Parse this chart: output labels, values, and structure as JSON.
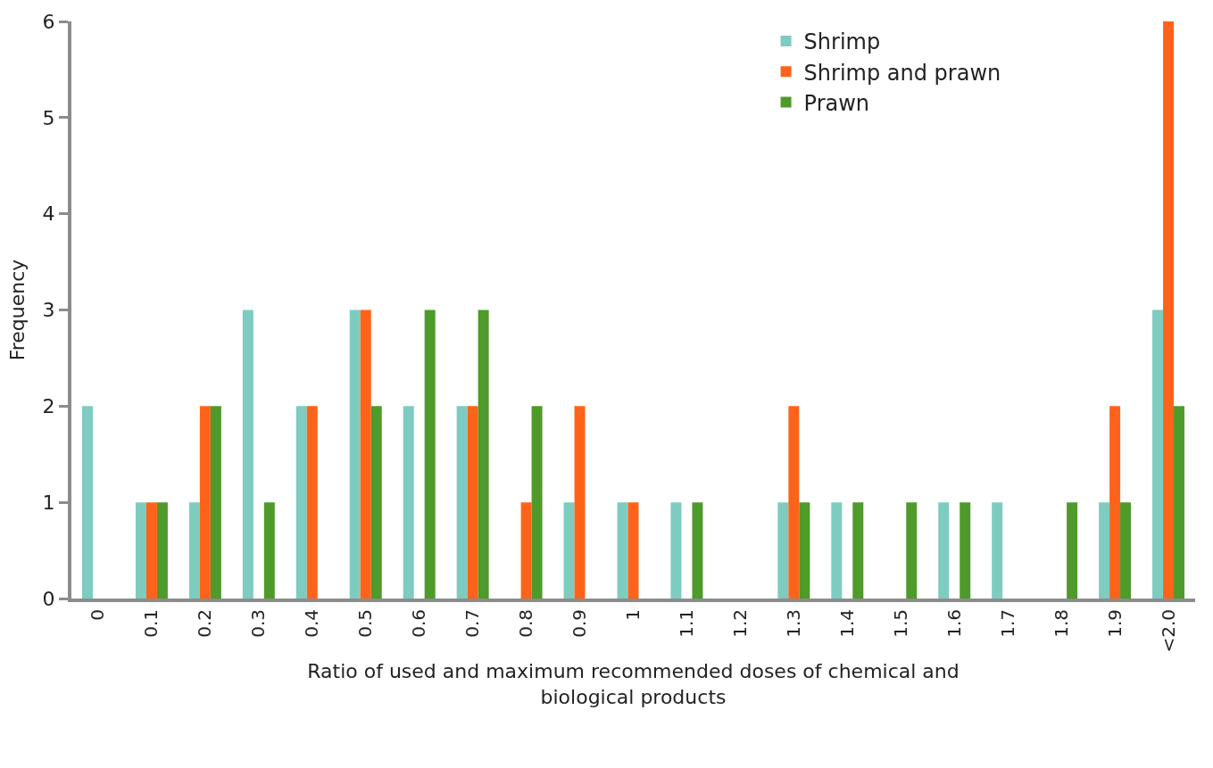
{
  "chart_data": {
    "type": "bar",
    "categories": [
      "0",
      "0.1",
      "0.2",
      "0.3",
      "0.4",
      "0.5",
      "0.6",
      "0.7",
      "0.8",
      "0.9",
      "1",
      "1.1",
      "1.2",
      "1.3",
      "1.4",
      "1.5",
      "1.6",
      "1.7",
      "1.8",
      "1.9",
      "<2.0"
    ],
    "series": [
      {
        "name": "Shrimp",
        "color": "#7ecbc0",
        "values": [
          2,
          1,
          1,
          3,
          2,
          3,
          2,
          2,
          0,
          1,
          1,
          1,
          0,
          1,
          1,
          0,
          1,
          1,
          0,
          1,
          3
        ]
      },
      {
        "name": "Shrimp and prawn",
        "color": "#ff6319",
        "values": [
          0,
          1,
          2,
          0,
          2,
          3,
          0,
          2,
          1,
          2,
          1,
          0,
          0,
          2,
          0,
          0,
          0,
          0,
          0,
          2,
          6
        ]
      },
      {
        "name": "Prawn",
        "color": "#4e9a2a",
        "values": [
          0,
          1,
          2,
          1,
          0,
          2,
          3,
          3,
          2,
          0,
          0,
          1,
          0,
          1,
          1,
          1,
          1,
          0,
          1,
          1,
          2
        ]
      }
    ],
    "xlabel": "Ratio of used and maximum recommended doses of chemical and biological products",
    "ylabel": "Frequency",
    "ylim": [
      0,
      6
    ],
    "yticks": [
      0,
      1,
      2,
      3,
      4,
      5,
      6
    ],
    "legend": "top right"
  }
}
